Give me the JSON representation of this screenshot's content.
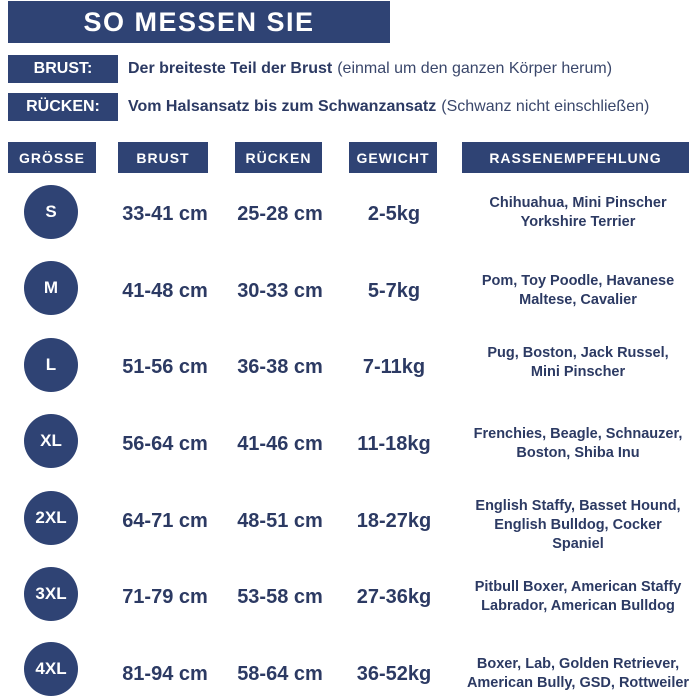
{
  "title": "SO MESSEN SIE",
  "instructions": [
    {
      "label": "BRUST:",
      "bold": "Der breiteste Teil der Brust",
      "note": "(einmal um den ganzen Körper herum)"
    },
    {
      "label": "RÜCKEN:",
      "bold": "Vom Halsansatz bis zum Schwanzansatz",
      "note": "(Schwanz nicht einschließen)"
    }
  ],
  "headers": [
    "GRÖSSE",
    "BRUST",
    "RÜCKEN",
    "GEWICHT",
    "RASSENEMPFEHLUNG"
  ],
  "rows": [
    {
      "size": "S",
      "chest": "33-41 cm",
      "back": "25-28 cm",
      "weight": "2-5kg",
      "breeds": [
        "Chihuahua, Mini Pinscher",
        "Yorkshire Terrier"
      ]
    },
    {
      "size": "M",
      "chest": "41-48 cm",
      "back": "30-33 cm",
      "weight": "5-7kg",
      "breeds": [
        "Pom, Toy Poodle, Havanese",
        "Maltese, Cavalier"
      ]
    },
    {
      "size": "L",
      "chest": "51-56 cm",
      "back": "36-38 cm",
      "weight": "7-11kg",
      "breeds": [
        "Pug, Boston, Jack Russel,",
        "Mini Pinscher"
      ]
    },
    {
      "size": "XL",
      "chest": "56-64 cm",
      "back": "41-46 cm",
      "weight": "11-18kg",
      "breeds": [
        "Frenchies, Beagle, Schnauzer,",
        "Boston, Shiba Inu"
      ]
    },
    {
      "size": "2XL",
      "chest": "64-71 cm",
      "back": "48-51 cm",
      "weight": "18-27kg",
      "breeds": [
        "English Staffy, Basset Hound,",
        "English Bulldog, Cocker",
        "Spaniel"
      ]
    },
    {
      "size": "3XL",
      "chest": "71-79 cm",
      "back": "53-58 cm",
      "weight": "27-36kg",
      "breeds": [
        "Pitbull Boxer, American Staffy",
        "Labrador, American Bulldog"
      ]
    },
    {
      "size": "4XL",
      "chest": "81-94 cm",
      "back": "58-64 cm",
      "weight": "36-52kg",
      "breeds": [
        "Boxer, Lab, Golden Retriever,",
        "American Bully, GSD, Rottweiler"
      ]
    }
  ],
  "colors": {
    "navy": "#2f4374",
    "text": "#2c3a63",
    "background": "#ffffff"
  }
}
